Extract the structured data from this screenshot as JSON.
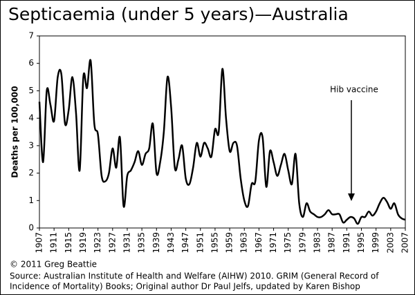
{
  "chart_data": {
    "type": "line",
    "title": "Septicaemia (under 5 years)—Australia",
    "y_label": "Deaths per 100,000",
    "annotation": "Hib vaccine",
    "credit": "© 2011 Greg Beattie",
    "source": [
      "Source: Australian Institute of Health and Welfare (AIHW) 2010. GRIM (General Record of",
      "Incidence of Mortality) Books; Original author Dr Paul Jelfs, updated by Karen Bishop"
    ],
    "x": [
      1907,
      1908,
      1909,
      1910,
      1911,
      1912,
      1913,
      1914,
      1915,
      1916,
      1917,
      1918,
      1919,
      1920,
      1921,
      1922,
      1923,
      1924,
      1925,
      1926,
      1927,
      1928,
      1929,
      1930,
      1931,
      1932,
      1933,
      1934,
      1935,
      1936,
      1937,
      1938,
      1939,
      1940,
      1941,
      1942,
      1943,
      1944,
      1945,
      1946,
      1947,
      1948,
      1949,
      1950,
      1951,
      1952,
      1953,
      1954,
      1955,
      1956,
      1957,
      1958,
      1959,
      1960,
      1961,
      1962,
      1963,
      1964,
      1965,
      1966,
      1967,
      1968,
      1969,
      1970,
      1971,
      1972,
      1973,
      1974,
      1975,
      1976,
      1977,
      1978,
      1979,
      1980,
      1981,
      1982,
      1983,
      1984,
      1985,
      1986,
      1987,
      1988,
      1989,
      1990,
      1991,
      1992,
      1993,
      1994,
      1995,
      1996,
      1997,
      1998,
      1999,
      2000,
      2001,
      2002,
      2003,
      2004,
      2005,
      2006,
      2007
    ],
    "series": [
      {
        "name": "Septicaemia",
        "color": "#000000",
        "values": [
          4.6,
          2.4,
          5.0,
          4.5,
          3.9,
          5.5,
          5.6,
          3.8,
          4.3,
          5.5,
          4.2,
          2.1,
          5.5,
          5.1,
          6.1,
          3.8,
          3.4,
          1.9,
          1.7,
          2.0,
          2.9,
          2.2,
          3.3,
          0.8,
          1.9,
          2.1,
          2.4,
          2.8,
          2.3,
          2.7,
          2.9,
          3.8,
          2.0,
          2.4,
          3.5,
          5.5,
          4.4,
          2.2,
          2.5,
          3.0,
          1.8,
          1.6,
          2.2,
          3.1,
          2.6,
          3.1,
          2.9,
          2.6,
          3.6,
          3.5,
          5.8,
          4.0,
          2.8,
          3.1,
          3.0,
          1.8,
          1.0,
          0.8,
          1.6,
          1.7,
          3.2,
          3.3,
          1.5,
          2.8,
          2.4,
          1.9,
          2.3,
          2.7,
          2.1,
          1.6,
          2.7,
          0.9,
          0.4,
          0.9,
          0.6,
          0.5,
          0.4,
          0.4,
          0.5,
          0.65,
          0.5,
          0.5,
          0.5,
          0.2,
          0.3,
          0.4,
          0.35,
          0.15,
          0.4,
          0.4,
          0.6,
          0.45,
          0.6,
          0.9,
          1.1,
          0.95,
          0.7,
          0.9,
          0.5,
          0.35,
          0.3
        ]
      }
    ],
    "xlim": [
      1907,
      2007
    ],
    "xticks": [
      1907,
      1911,
      1915,
      1919,
      1923,
      1927,
      1931,
      1935,
      1939,
      1943,
      1947,
      1951,
      1955,
      1959,
      1963,
      1967,
      1971,
      1975,
      1979,
      1983,
      1987,
      1991,
      1995,
      1999,
      2003,
      2007
    ],
    "ylim": [
      0,
      7
    ],
    "yticks": [
      0,
      1,
      2,
      3,
      4,
      5,
      6,
      7
    ],
    "grid": false
  }
}
